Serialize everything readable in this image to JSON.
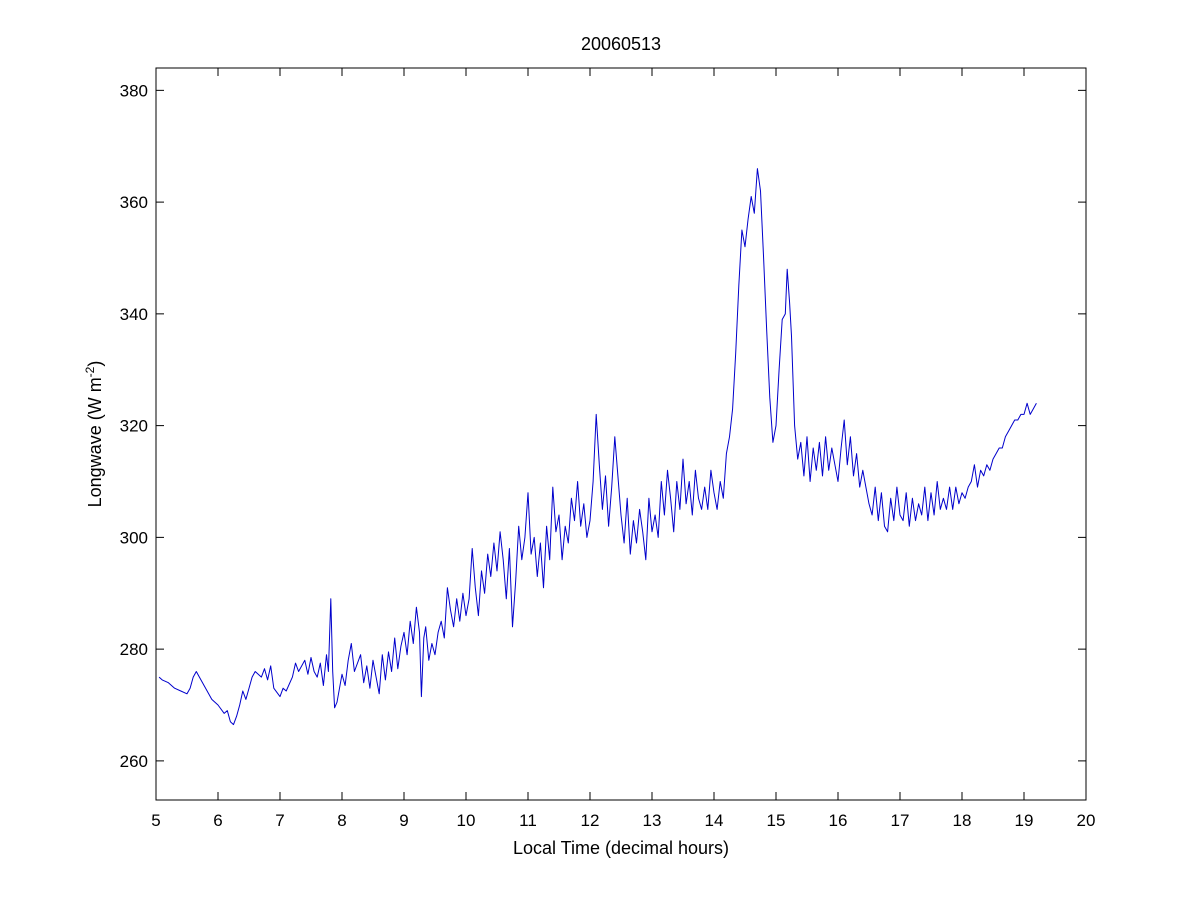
{
  "chart_data": {
    "type": "line",
    "title": "20060513",
    "xlabel": "Local Time (decimal hours)",
    "ylabel": {
      "main": "Longwave (W m",
      "sup": "-2",
      "close": ")"
    },
    "xlim": [
      5,
      20
    ],
    "ylim": [
      253,
      384
    ],
    "xticks": [
      5,
      6,
      7,
      8,
      9,
      10,
      11,
      12,
      13,
      14,
      15,
      16,
      17,
      18,
      19,
      20
    ],
    "yticks": [
      260,
      280,
      300,
      320,
      340,
      360,
      380
    ],
    "grid": false,
    "line_color": "#0000cc",
    "series": [
      {
        "points": [
          [
            5.05,
            275
          ],
          [
            5.1,
            274.5
          ],
          [
            5.2,
            274
          ],
          [
            5.3,
            273
          ],
          [
            5.4,
            272.5
          ],
          [
            5.5,
            272
          ],
          [
            5.55,
            273
          ],
          [
            5.6,
            275
          ],
          [
            5.65,
            276
          ],
          [
            5.7,
            275
          ],
          [
            5.8,
            273
          ],
          [
            5.9,
            271
          ],
          [
            6.0,
            270
          ],
          [
            6.1,
            268.5
          ],
          [
            6.15,
            269
          ],
          [
            6.2,
            267
          ],
          [
            6.25,
            266.5
          ],
          [
            6.3,
            268
          ],
          [
            6.35,
            270
          ],
          [
            6.4,
            272.5
          ],
          [
            6.45,
            271
          ],
          [
            6.5,
            273
          ],
          [
            6.55,
            275
          ],
          [
            6.6,
            276
          ],
          [
            6.7,
            275
          ],
          [
            6.75,
            276.5
          ],
          [
            6.8,
            274.5
          ],
          [
            6.85,
            277
          ],
          [
            6.9,
            273
          ],
          [
            7.0,
            271.5
          ],
          [
            7.05,
            273
          ],
          [
            7.1,
            272.5
          ],
          [
            7.2,
            275
          ],
          [
            7.25,
            277.5
          ],
          [
            7.3,
            276
          ],
          [
            7.4,
            278
          ],
          [
            7.45,
            275.5
          ],
          [
            7.5,
            278.5
          ],
          [
            7.55,
            276
          ],
          [
            7.6,
            275
          ],
          [
            7.65,
            277.5
          ],
          [
            7.7,
            273.5
          ],
          [
            7.75,
            279
          ],
          [
            7.78,
            276
          ],
          [
            7.82,
            289
          ],
          [
            7.85,
            276
          ],
          [
            7.88,
            269.5
          ],
          [
            7.92,
            270.5
          ],
          [
            8.0,
            275.5
          ],
          [
            8.05,
            273.5
          ],
          [
            8.1,
            278
          ],
          [
            8.15,
            281
          ],
          [
            8.2,
            276
          ],
          [
            8.3,
            279
          ],
          [
            8.35,
            274
          ],
          [
            8.4,
            277
          ],
          [
            8.45,
            273
          ],
          [
            8.5,
            278
          ],
          [
            8.55,
            275
          ],
          [
            8.6,
            272
          ],
          [
            8.65,
            279
          ],
          [
            8.7,
            274.5
          ],
          [
            8.75,
            279.5
          ],
          [
            8.8,
            276
          ],
          [
            8.85,
            282
          ],
          [
            8.9,
            276.5
          ],
          [
            8.95,
            280.5
          ],
          [
            9.0,
            283
          ],
          [
            9.05,
            279
          ],
          [
            9.1,
            285
          ],
          [
            9.15,
            281
          ],
          [
            9.2,
            287.5
          ],
          [
            9.25,
            283
          ],
          [
            9.28,
            271.5
          ],
          [
            9.32,
            282
          ],
          [
            9.35,
            284
          ],
          [
            9.4,
            278
          ],
          [
            9.45,
            281
          ],
          [
            9.5,
            279
          ],
          [
            9.55,
            283
          ],
          [
            9.6,
            285
          ],
          [
            9.65,
            282
          ],
          [
            9.7,
            291
          ],
          [
            9.75,
            287
          ],
          [
            9.8,
            284
          ],
          [
            9.85,
            289
          ],
          [
            9.9,
            285
          ],
          [
            9.95,
            290
          ],
          [
            10.0,
            286
          ],
          [
            10.05,
            289
          ],
          [
            10.1,
            298
          ],
          [
            10.15,
            291
          ],
          [
            10.2,
            286
          ],
          [
            10.25,
            294
          ],
          [
            10.3,
            290
          ],
          [
            10.35,
            297
          ],
          [
            10.4,
            293
          ],
          [
            10.45,
            299
          ],
          [
            10.5,
            294
          ],
          [
            10.55,
            301
          ],
          [
            10.6,
            296
          ],
          [
            10.65,
            289
          ],
          [
            10.7,
            298
          ],
          [
            10.75,
            284
          ],
          [
            10.8,
            292
          ],
          [
            10.85,
            302
          ],
          [
            10.9,
            296
          ],
          [
            10.95,
            300
          ],
          [
            11.0,
            308
          ],
          [
            11.05,
            297
          ],
          [
            11.1,
            300
          ],
          [
            11.15,
            293
          ],
          [
            11.2,
            299
          ],
          [
            11.25,
            291
          ],
          [
            11.3,
            302
          ],
          [
            11.35,
            296
          ],
          [
            11.4,
            309
          ],
          [
            11.45,
            301
          ],
          [
            11.5,
            304
          ],
          [
            11.55,
            296
          ],
          [
            11.6,
            302
          ],
          [
            11.65,
            299
          ],
          [
            11.7,
            307
          ],
          [
            11.75,
            303
          ],
          [
            11.8,
            310
          ],
          [
            11.85,
            302
          ],
          [
            11.9,
            306
          ],
          [
            11.95,
            300
          ],
          [
            12.0,
            303
          ],
          [
            12.05,
            310
          ],
          [
            12.1,
            322
          ],
          [
            12.15,
            313
          ],
          [
            12.2,
            305
          ],
          [
            12.25,
            311
          ],
          [
            12.3,
            302
          ],
          [
            12.35,
            309
          ],
          [
            12.4,
            318
          ],
          [
            12.45,
            311
          ],
          [
            12.5,
            304
          ],
          [
            12.55,
            299
          ],
          [
            12.6,
            307
          ],
          [
            12.65,
            297
          ],
          [
            12.7,
            303
          ],
          [
            12.75,
            299
          ],
          [
            12.8,
            305
          ],
          [
            12.85,
            301
          ],
          [
            12.9,
            296
          ],
          [
            12.95,
            307
          ],
          [
            13.0,
            301
          ],
          [
            13.05,
            304
          ],
          [
            13.1,
            300
          ],
          [
            13.15,
            310
          ],
          [
            13.2,
            304
          ],
          [
            13.25,
            312
          ],
          [
            13.3,
            307
          ],
          [
            13.35,
            301
          ],
          [
            13.4,
            310
          ],
          [
            13.45,
            305
          ],
          [
            13.5,
            314
          ],
          [
            13.55,
            306
          ],
          [
            13.6,
            310
          ],
          [
            13.65,
            304
          ],
          [
            13.7,
            312
          ],
          [
            13.75,
            307
          ],
          [
            13.8,
            305
          ],
          [
            13.85,
            309
          ],
          [
            13.9,
            305
          ],
          [
            13.95,
            312
          ],
          [
            14.0,
            308
          ],
          [
            14.05,
            305
          ],
          [
            14.1,
            310
          ],
          [
            14.15,
            307
          ],
          [
            14.2,
            315
          ],
          [
            14.25,
            318
          ],
          [
            14.3,
            323
          ],
          [
            14.35,
            333
          ],
          [
            14.4,
            345
          ],
          [
            14.45,
            355
          ],
          [
            14.5,
            352
          ],
          [
            14.55,
            357
          ],
          [
            14.6,
            361
          ],
          [
            14.65,
            358
          ],
          [
            14.7,
            366
          ],
          [
            14.75,
            362
          ],
          [
            14.8,
            350
          ],
          [
            14.85,
            337
          ],
          [
            14.9,
            325
          ],
          [
            14.95,
            317
          ],
          [
            15.0,
            320
          ],
          [
            15.05,
            330
          ],
          [
            15.1,
            339
          ],
          [
            15.15,
            340
          ],
          [
            15.18,
            348
          ],
          [
            15.22,
            342
          ],
          [
            15.25,
            336
          ],
          [
            15.3,
            320
          ],
          [
            15.35,
            314
          ],
          [
            15.4,
            317
          ],
          [
            15.45,
            311
          ],
          [
            15.5,
            318
          ],
          [
            15.55,
            310
          ],
          [
            15.6,
            316
          ],
          [
            15.65,
            312
          ],
          [
            15.7,
            317
          ],
          [
            15.75,
            311
          ],
          [
            15.8,
            318
          ],
          [
            15.85,
            312
          ],
          [
            15.9,
            316
          ],
          [
            15.95,
            313
          ],
          [
            16.0,
            310
          ],
          [
            16.05,
            316
          ],
          [
            16.1,
            321
          ],
          [
            16.15,
            313
          ],
          [
            16.2,
            318
          ],
          [
            16.25,
            311
          ],
          [
            16.3,
            315
          ],
          [
            16.35,
            309
          ],
          [
            16.4,
            312
          ],
          [
            16.45,
            309
          ],
          [
            16.5,
            306
          ],
          [
            16.55,
            304
          ],
          [
            16.6,
            309
          ],
          [
            16.65,
            303
          ],
          [
            16.7,
            308
          ],
          [
            16.75,
            302
          ],
          [
            16.8,
            301
          ],
          [
            16.85,
            307
          ],
          [
            16.9,
            303
          ],
          [
            16.95,
            309
          ],
          [
            17.0,
            304
          ],
          [
            17.05,
            303
          ],
          [
            17.1,
            308
          ],
          [
            17.15,
            302
          ],
          [
            17.2,
            307
          ],
          [
            17.25,
            303
          ],
          [
            17.3,
            306
          ],
          [
            17.35,
            304
          ],
          [
            17.4,
            309
          ],
          [
            17.45,
            303
          ],
          [
            17.5,
            308
          ],
          [
            17.55,
            304
          ],
          [
            17.6,
            310
          ],
          [
            17.65,
            305
          ],
          [
            17.7,
            307
          ],
          [
            17.75,
            305
          ],
          [
            17.8,
            309
          ],
          [
            17.85,
            305
          ],
          [
            17.9,
            309
          ],
          [
            17.95,
            306
          ],
          [
            18.0,
            308
          ],
          [
            18.05,
            307
          ],
          [
            18.1,
            309
          ],
          [
            18.15,
            310
          ],
          [
            18.2,
            313
          ],
          [
            18.25,
            309
          ],
          [
            18.3,
            312
          ],
          [
            18.35,
            311
          ],
          [
            18.4,
            313
          ],
          [
            18.45,
            312
          ],
          [
            18.5,
            314
          ],
          [
            18.55,
            315
          ],
          [
            18.6,
            316
          ],
          [
            18.65,
            316
          ],
          [
            18.7,
            318
          ],
          [
            18.75,
            319
          ],
          [
            18.8,
            320
          ],
          [
            18.85,
            321
          ],
          [
            18.9,
            321
          ],
          [
            18.95,
            322
          ],
          [
            19.0,
            322
          ],
          [
            19.05,
            324
          ],
          [
            19.1,
            322
          ],
          [
            19.15,
            323
          ],
          [
            19.2,
            324
          ]
        ]
      }
    ]
  }
}
